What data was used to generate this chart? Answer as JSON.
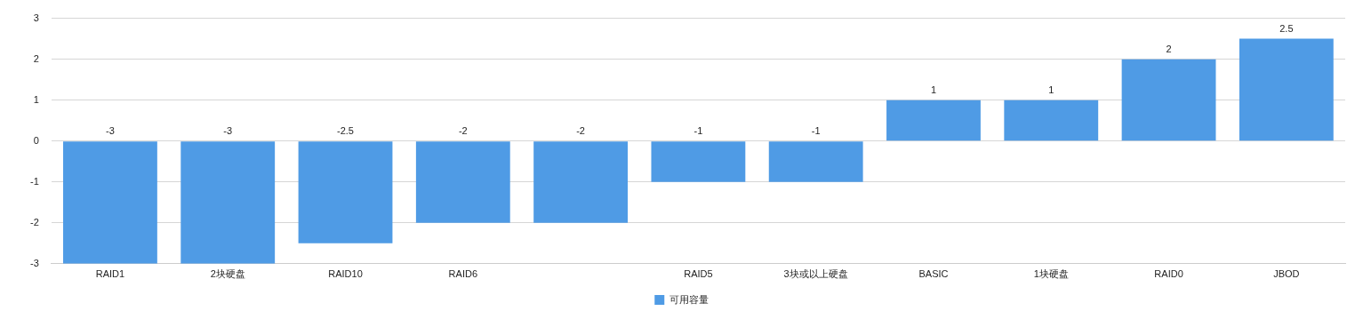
{
  "chart_data": {
    "type": "bar",
    "categories": [
      "RAID1",
      "2块硬盘",
      "RAID10",
      "RAID6",
      null,
      "RAID5",
      "3块或以上硬盘",
      "BASIC",
      "1块硬盘",
      "RAID0",
      "JBOD"
    ],
    "series": [
      {
        "name": "可用容量",
        "color": "#4f9be5",
        "values": [
          -3,
          -3,
          -2.5,
          -2,
          -2,
          -1,
          -1,
          1,
          1,
          2,
          2.5
        ]
      }
    ],
    "ylim": [
      -3,
      3
    ],
    "yticks": [
      -3,
      -2,
      -1,
      0,
      1,
      2,
      3
    ],
    "grid": "y",
    "legend": "bottom",
    "data_labels": true
  }
}
